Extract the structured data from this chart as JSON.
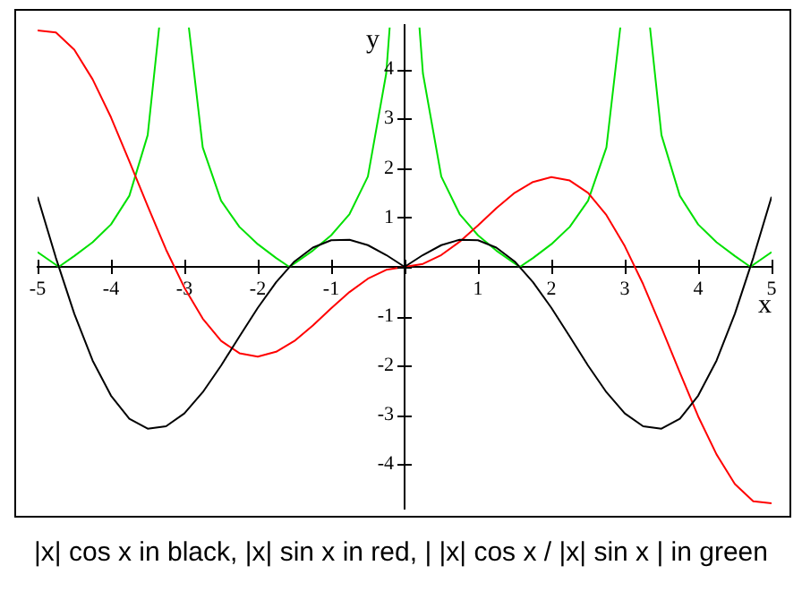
{
  "chart_data": {
    "type": "line",
    "title": "|x| cos x in black, |x| sin x in red, | |x| cos x / |x| sin x | in green",
    "xlabel": "x",
    "ylabel": "y",
    "xlim": [
      -5,
      5
    ],
    "ylim": [
      -4.9,
      4.9
    ],
    "xticks": [
      -5,
      -4,
      -3,
      -2,
      -1,
      {
        "value": 0,
        "label": null
      },
      1,
      2,
      3,
      4,
      5
    ],
    "yticks": [
      -4,
      -3,
      -2,
      -1,
      {
        "value": 0,
        "label": null
      },
      1,
      2,
      3,
      4
    ],
    "grid": false,
    "legend": false,
    "marker": "none",
    "line_style": "solid",
    "series": [
      {
        "color": "#000000",
        "x": [
          -5,
          -4.75,
          -4.5,
          -4.25,
          -4,
          -3.75,
          -3.5,
          -3.25,
          -3,
          -2.75,
          -2.5,
          -2.25,
          -2,
          -1.75,
          -1.5,
          -1.25,
          -1,
          -0.75,
          -0.5,
          -0.25,
          0,
          0.25,
          0.5,
          0.75,
          1,
          1.25,
          1.5,
          1.75,
          2,
          2.25,
          2.5,
          2.75,
          3,
          3.25,
          3.5,
          3.75,
          4,
          4.25,
          4.5,
          4.75,
          5
        ],
        "values": [
          1.42,
          0.18,
          -0.95,
          -1.9,
          -2.61,
          -3.08,
          -3.28,
          -3.23,
          -2.97,
          -2.54,
          -2.0,
          -1.41,
          -0.83,
          -0.31,
          0.11,
          0.39,
          0.54,
          0.55,
          0.44,
          0.24,
          0,
          0.24,
          0.44,
          0.55,
          0.54,
          0.39,
          0.11,
          -0.31,
          -0.83,
          -1.41,
          -2.0,
          -2.54,
          -2.97,
          -3.23,
          -3.28,
          -3.08,
          -2.61,
          -1.9,
          -0.95,
          0.18,
          1.42
        ]
      },
      {
        "color": "#ff0000",
        "x": [
          -5,
          -4.75,
          -4.5,
          -4.25,
          -4,
          -3.75,
          -3.5,
          -3.25,
          -3,
          -2.75,
          -2.5,
          -2.25,
          -2,
          -1.75,
          -1.5,
          -1.25,
          -1,
          -0.75,
          -0.5,
          -0.25,
          0,
          0.25,
          0.5,
          0.75,
          1,
          1.25,
          1.5,
          1.75,
          2,
          2.25,
          2.5,
          2.75,
          3,
          3.25,
          3.5,
          3.75,
          4,
          4.25,
          4.5,
          4.75,
          5
        ],
        "values": [
          4.79,
          4.75,
          4.4,
          3.8,
          3.03,
          2.14,
          1.23,
          0.35,
          -0.42,
          -1.05,
          -1.5,
          -1.75,
          -1.82,
          -1.72,
          -1.5,
          -1.19,
          -0.84,
          -0.51,
          -0.24,
          -0.06,
          0,
          0.06,
          0.24,
          0.51,
          0.84,
          1.19,
          1.5,
          1.72,
          1.82,
          1.75,
          1.5,
          1.05,
          0.42,
          -0.35,
          -1.23,
          -2.14,
          -3.03,
          -3.8,
          -4.4,
          -4.75,
          -4.79
        ]
      },
      {
        "color": "#00e000",
        "x": [
          -5,
          -4.75,
          -4.712,
          -4.5,
          -4.25,
          -4,
          -3.75,
          -3.5,
          -3.344,
          -3.142,
          -2.939,
          -2.75,
          -2.5,
          -2.25,
          -2,
          -1.75,
          -1.571,
          -1.5,
          -1.25,
          -1,
          -0.75,
          -0.5,
          -0.25,
          -0.203,
          0,
          0.203,
          0.25,
          0.5,
          0.75,
          1,
          1.25,
          1.5,
          1.571,
          1.75,
          2,
          2.25,
          2.5,
          2.75,
          2.939,
          3.142,
          3.344,
          3.5,
          3.75,
          4,
          4.25,
          4.5,
          4.712,
          4.75,
          5
        ],
        "values": [
          0.3,
          0.04,
          0,
          0.22,
          0.5,
          0.86,
          1.44,
          2.67,
          4.85,
          null,
          4.85,
          2.42,
          1.34,
          0.81,
          0.46,
          0.18,
          0,
          0.07,
          0.33,
          0.64,
          1.07,
          1.83,
          3.92,
          4.85,
          null,
          4.85,
          3.92,
          1.83,
          1.07,
          0.64,
          0.33,
          0.07,
          0,
          0.18,
          0.46,
          0.81,
          1.34,
          2.42,
          4.85,
          null,
          4.85,
          2.67,
          1.44,
          0.86,
          0.5,
          0.22,
          0,
          0.04,
          0.3
        ]
      }
    ]
  }
}
